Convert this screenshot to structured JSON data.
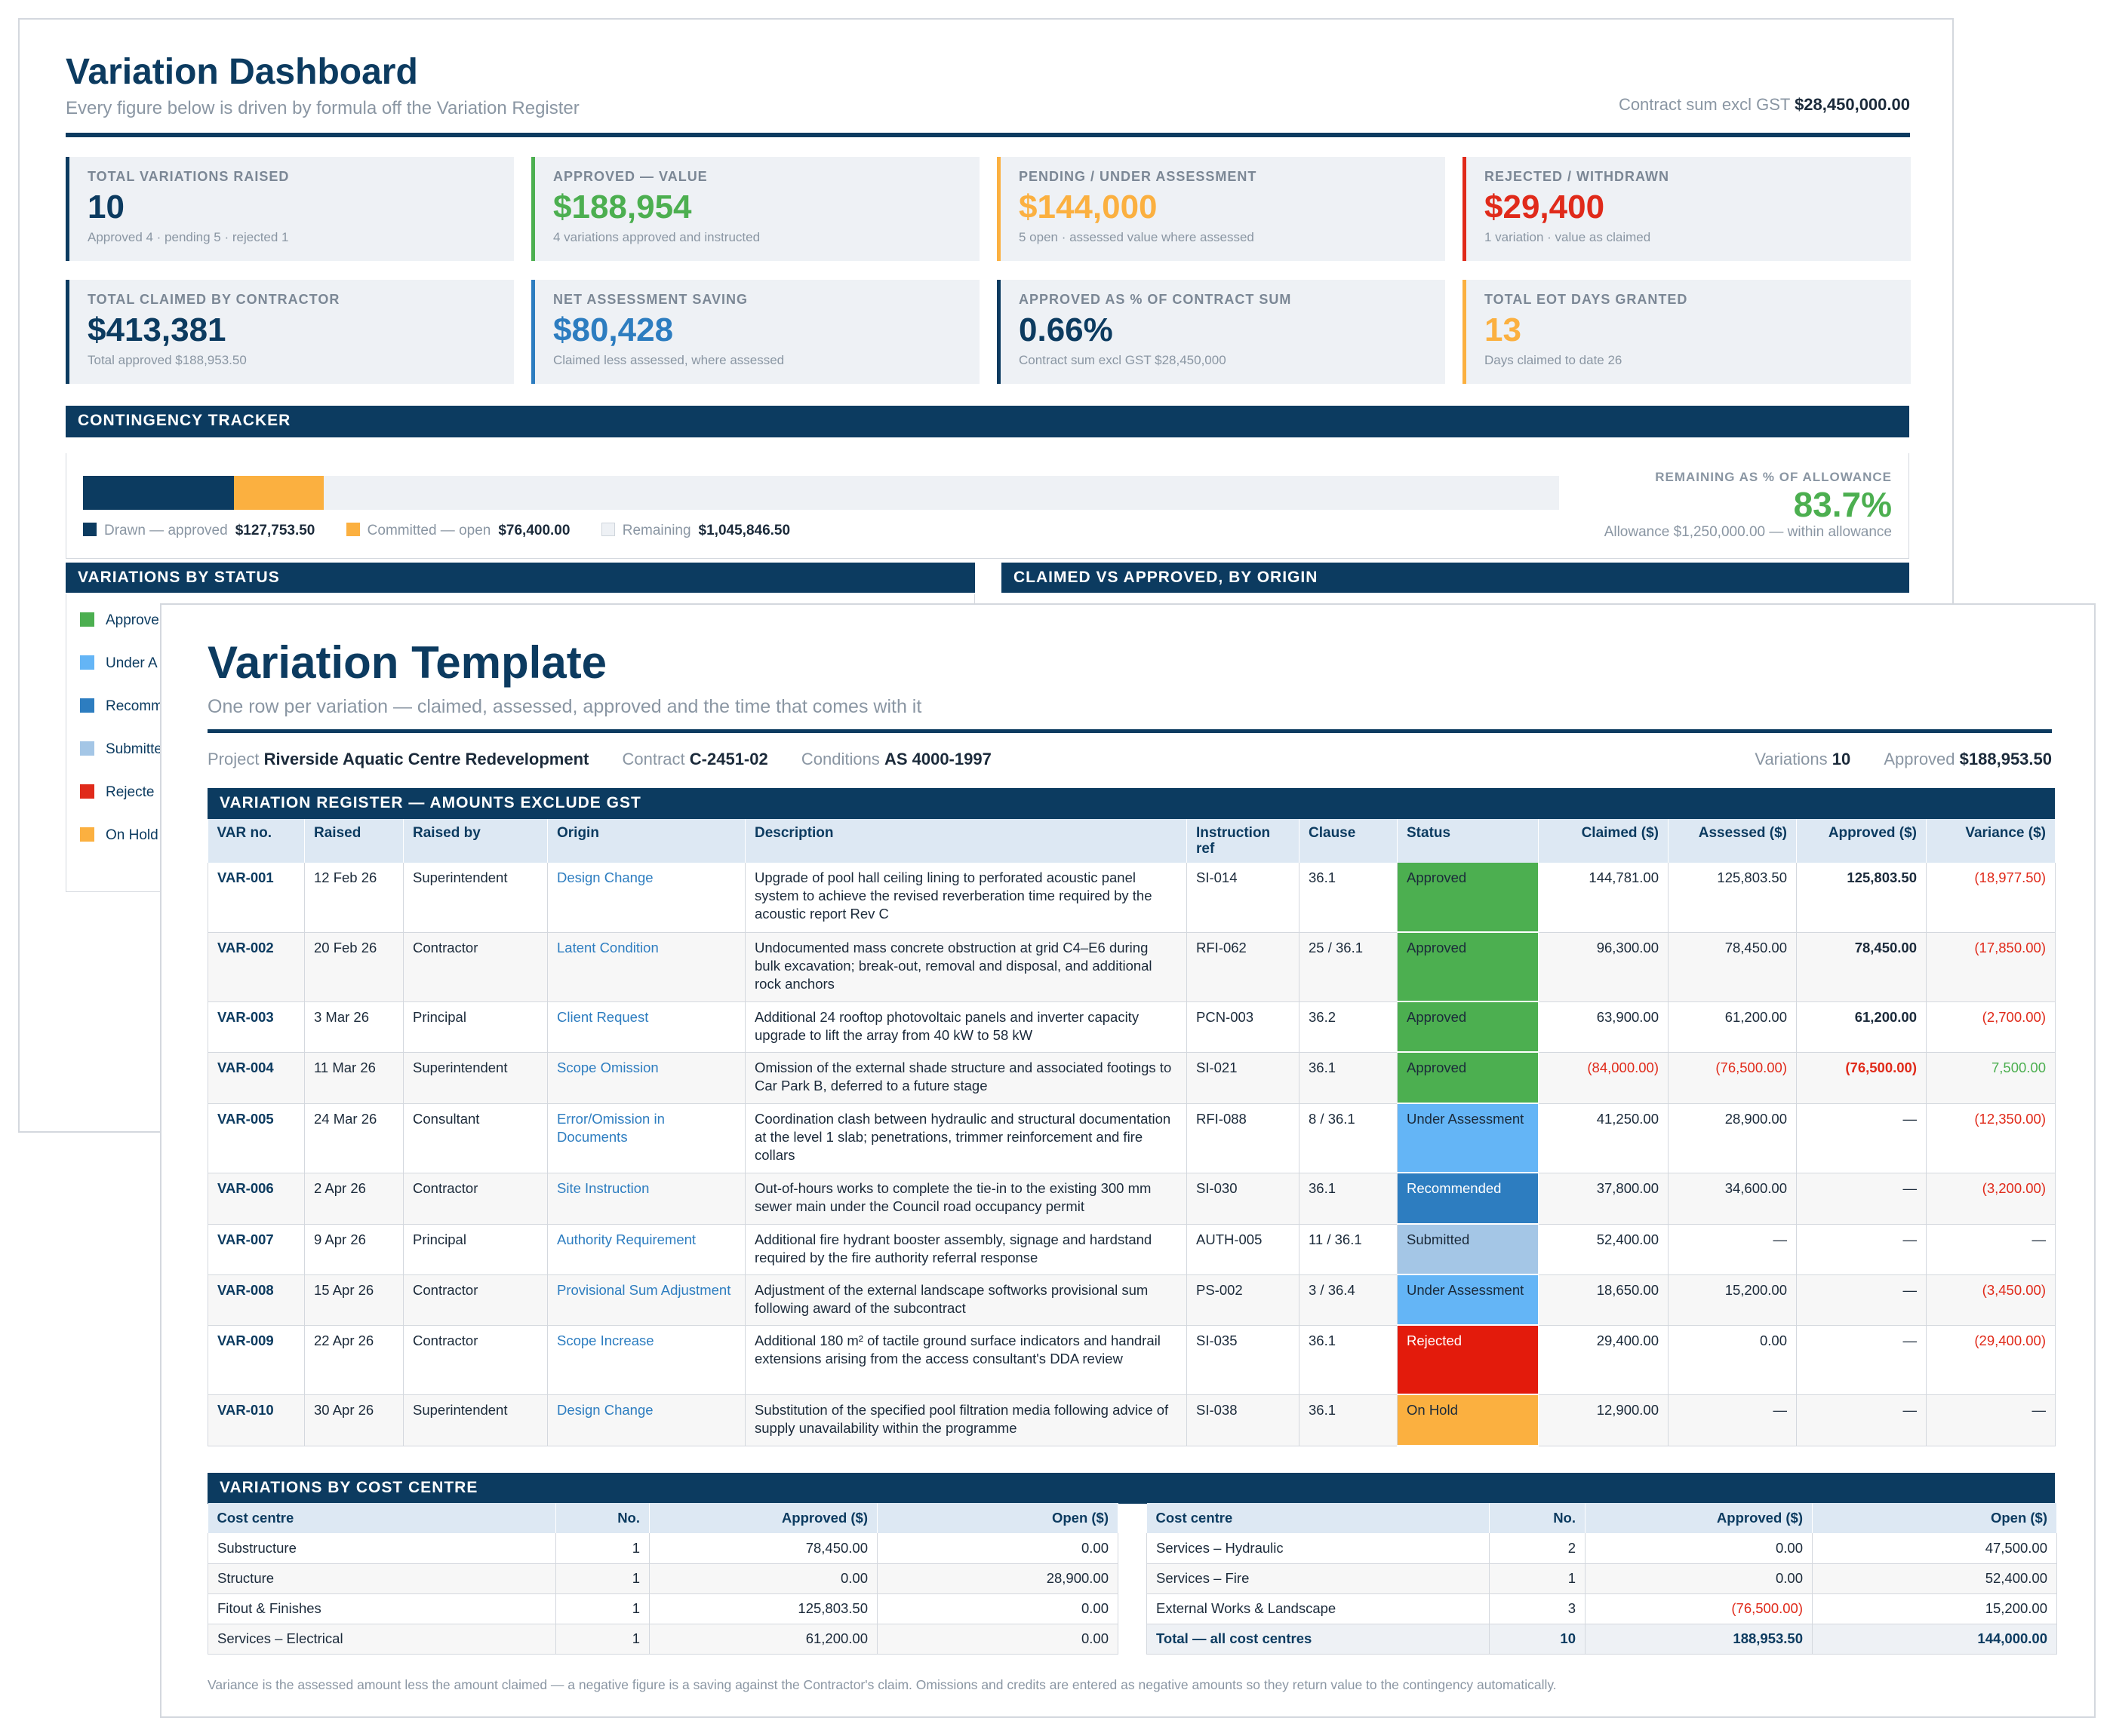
{
  "dashboard": {
    "title": "Variation Dashboard",
    "subtitle": "Every figure below is driven by formula off the Variation Register",
    "contract_sum_label": "Contract sum excl GST",
    "contract_sum_value": "$28,450,000.00",
    "kpis": [
      {
        "label": "TOTAL VARIATIONS RAISED",
        "value": "10",
        "sub": "Approved 4 · pending 5 · rejected 1",
        "color": "#0c3b60"
      },
      {
        "label": "APPROVED — VALUE",
        "value": "$188,954",
        "sub": "4 variations approved and instructed",
        "color": "#4caf50"
      },
      {
        "label": "PENDING / UNDER ASSESSMENT",
        "value": "$144,000",
        "sub": "5 open · assessed value where assessed",
        "color": "#fbb040"
      },
      {
        "label": "REJECTED / WITHDRAWN",
        "value": "$29,400",
        "sub": "1 variation · value as claimed",
        "color": "#e02a1a"
      },
      {
        "label": "TOTAL CLAIMED BY CONTRACTOR",
        "value": "$413,381",
        "sub": "Total approved $188,953.50",
        "color": "#0c3b60"
      },
      {
        "label": "NET ASSESSMENT SAVING",
        "value": "$80,428",
        "sub": "Claimed less assessed, where assessed",
        "color": "#2d7dc0"
      },
      {
        "label": "APPROVED AS % OF CONTRACT SUM",
        "value": "0.66%",
        "sub": "Contract sum excl GST $28,450,000",
        "color": "#0c3b60"
      },
      {
        "label": "TOTAL EOT DAYS GRANTED",
        "value": "13",
        "sub": "Days claimed to date 26",
        "color": "#fbb040"
      }
    ],
    "contingency": {
      "heading": "CONTINGENCY TRACKER",
      "allowance": 1250000,
      "drawn_value": 127753.5,
      "committed_value": 76400,
      "drawn_label": "Drawn — approved",
      "drawn_amount": "$127,753.50",
      "committed_label": "Committed — open",
      "committed_amount": "$76,400.00",
      "remaining_label": "Remaining",
      "remaining_amount": "$1,045,846.50",
      "remaining_pct_label": "REMAINING AS % OF ALLOWANCE",
      "remaining_pct": "83.7%",
      "allowance_note": "Allowance $1,250,000.00 — within allowance",
      "drawn_color": "#0c3b60",
      "committed_color": "#fbb040"
    },
    "status_heading": "VARIATIONS BY STATUS",
    "origin_heading": "CLAIMED VS APPROVED, BY ORIGIN",
    "status_legend": [
      {
        "label": "Approve",
        "color": "#4caf50"
      },
      {
        "label": "Under A",
        "color": "#64b5f6"
      },
      {
        "label": "Recomm",
        "color": "#2d7dc0"
      },
      {
        "label": "Submitte",
        "color": "#a4c6e6"
      },
      {
        "label": "Rejecte",
        "color": "#e02a1a"
      },
      {
        "label": "On Hold",
        "color": "#fbb040"
      }
    ]
  },
  "template": {
    "title": "Variation Template",
    "subtitle": "One row per variation — claimed, assessed, approved and the time that comes with it",
    "meta": {
      "project_label": "Project",
      "project_value": "Riverside Aquatic Centre Redevelopment",
      "contract_label": "Contract",
      "contract_value": "C-2451-02",
      "conditions_label": "Conditions",
      "conditions_value": "AS 4000-1997",
      "variations_label": "Variations",
      "variations_value": "10",
      "approved_label": "Approved",
      "approved_value": "$188,953.50"
    },
    "register_heading": "VARIATION REGISTER — AMOUNTS EXCLUDE GST",
    "columns": [
      "VAR no.",
      "Raised",
      "Raised by",
      "Origin",
      "Description",
      "Instruction ref",
      "Clause",
      "Status",
      "Claimed ($)",
      "Assessed ($)",
      "Approved ($)",
      "Variance ($)"
    ],
    "status_colors": {
      "Approved": "#4caf50",
      "Under Assessment": "#64b5f6",
      "Recommended": "#2d7dc0",
      "Submitted": "#a4c6e6",
      "Rejected": "#e31b0c",
      "On Hold": "#fbb040"
    },
    "rows": [
      {
        "id": "VAR-001",
        "raised": "12 Feb 26",
        "by": "Superintendent",
        "origin": "Design Change",
        "desc": "Upgrade of pool hall ceiling lining to perforated acoustic panel system to achieve the revised reverberation time required by the acoustic report Rev C",
        "ref": "SI-014",
        "clause": "36.1",
        "status": "Approved",
        "claimed": "144,781.00",
        "assessed": "125,803.50",
        "approved": "125,803.50",
        "variance": "(18,977.50)"
      },
      {
        "id": "VAR-002",
        "raised": "20 Feb 26",
        "by": "Contractor",
        "origin": "Latent Condition",
        "desc": "Undocumented mass concrete obstruction at grid C4–E6 during bulk excavation; break-out, removal and disposal, and additional rock anchors",
        "ref": "RFI-062",
        "clause": "25 / 36.1",
        "status": "Approved",
        "claimed": "96,300.00",
        "assessed": "78,450.00",
        "approved": "78,450.00",
        "variance": "(17,850.00)"
      },
      {
        "id": "VAR-003",
        "raised": "3 Mar 26",
        "by": "Principal",
        "origin": "Client Request",
        "desc": "Additional 24 rooftop photovoltaic panels and inverter capacity upgrade to lift the array from 40 kW to 58 kW",
        "ref": "PCN-003",
        "clause": "36.2",
        "status": "Approved",
        "claimed": "63,900.00",
        "assessed": "61,200.00",
        "approved": "61,200.00",
        "variance": "(2,700.00)"
      },
      {
        "id": "VAR-004",
        "raised": "11 Mar 26",
        "by": "Superintendent",
        "origin": "Scope Omission",
        "desc": "Omission of the external shade structure and associated footings to Car Park B, deferred to a future stage",
        "ref": "SI-021",
        "clause": "36.1",
        "status": "Approved",
        "claimed": "(84,000.00)",
        "assessed": "(76,500.00)",
        "approved": "(76,500.00)",
        "variance": "7,500.00"
      },
      {
        "id": "VAR-005",
        "raised": "24 Mar 26",
        "by": "Consultant",
        "origin": "Error/Omission in Documents",
        "desc": "Coordination clash between hydraulic and structural documentation at the level 1 slab; penetrations, trimmer reinforcement and fire collars",
        "ref": "RFI-088",
        "clause": "8 / 36.1",
        "status": "Under Assessment",
        "claimed": "41,250.00",
        "assessed": "28,900.00",
        "approved": "—",
        "variance": "(12,350.00)"
      },
      {
        "id": "VAR-006",
        "raised": "2 Apr 26",
        "by": "Contractor",
        "origin": "Site Instruction",
        "desc": "Out-of-hours works to complete the tie-in to the existing 300 mm sewer main under the Council road occupancy permit",
        "ref": "SI-030",
        "clause": "36.1",
        "status": "Recommended",
        "claimed": "37,800.00",
        "assessed": "34,600.00",
        "approved": "—",
        "variance": "(3,200.00)"
      },
      {
        "id": "VAR-007",
        "raised": "9 Apr 26",
        "by": "Principal",
        "origin": "Authority Requirement",
        "desc": "Additional fire hydrant booster assembly, signage and hardstand required by the fire authority referral response",
        "ref": "AUTH-005",
        "clause": "11 / 36.1",
        "status": "Submitted",
        "claimed": "52,400.00",
        "assessed": "—",
        "approved": "—",
        "variance": "—"
      },
      {
        "id": "VAR-008",
        "raised": "15 Apr 26",
        "by": "Contractor",
        "origin": "Provisional Sum Adjustment",
        "desc": "Adjustment of the external landscape softworks provisional sum following award of the subcontract",
        "ref": "PS-002",
        "clause": "3 / 36.4",
        "status": "Under Assessment",
        "claimed": "18,650.00",
        "assessed": "15,200.00",
        "approved": "—",
        "variance": "(3,450.00)"
      },
      {
        "id": "VAR-009",
        "raised": "22 Apr 26",
        "by": "Contractor",
        "origin": "Scope Increase",
        "desc": "Additional 180 m² of tactile ground surface indicators and handrail extensions arising from the access consultant's DDA review",
        "ref": "SI-035",
        "clause": "36.1",
        "status": "Rejected",
        "claimed": "29,400.00",
        "assessed": "0.00",
        "approved": "—",
        "variance": "(29,400.00)"
      },
      {
        "id": "VAR-010",
        "raised": "30 Apr 26",
        "by": "Superintendent",
        "origin": "Design Change",
        "desc": "Substitution of the specified pool filtration media following advice of supply unavailability within the programme",
        "ref": "SI-038",
        "clause": "36.1",
        "status": "On Hold",
        "claimed": "12,900.00",
        "assessed": "—",
        "approved": "—",
        "variance": "—"
      }
    ],
    "cost_centre_heading": "VARIATIONS BY COST CENTRE",
    "cc_columns": [
      "Cost centre",
      "No.",
      "Approved ($)",
      "Open ($)"
    ],
    "cc_left": [
      {
        "name": "Substructure",
        "no": "1",
        "approved": "78,450.00",
        "open": "0.00"
      },
      {
        "name": "Structure",
        "no": "1",
        "approved": "0.00",
        "open": "28,900.00"
      },
      {
        "name": "Fitout & Finishes",
        "no": "1",
        "approved": "125,803.50",
        "open": "0.00"
      },
      {
        "name": "Services – Electrical",
        "no": "1",
        "approved": "61,200.00",
        "open": "0.00"
      }
    ],
    "cc_right": [
      {
        "name": "Services – Hydraulic",
        "no": "2",
        "approved": "0.00",
        "open": "47,500.00"
      },
      {
        "name": "Services – Fire",
        "no": "1",
        "approved": "0.00",
        "open": "52,400.00"
      },
      {
        "name": "External Works & Landscape",
        "no": "3",
        "approved": "(76,500.00)",
        "open": "15,200.00"
      },
      {
        "name": "Total — all cost centres",
        "no": "10",
        "approved": "188,953.50",
        "open": "144,000.00",
        "total": true
      }
    ],
    "footnote": "Variance is the assessed amount less the amount claimed — a negative figure is a saving against the Contractor's claim. Omissions and credits are entered as negative amounts so they return value to the contingency automatically."
  }
}
